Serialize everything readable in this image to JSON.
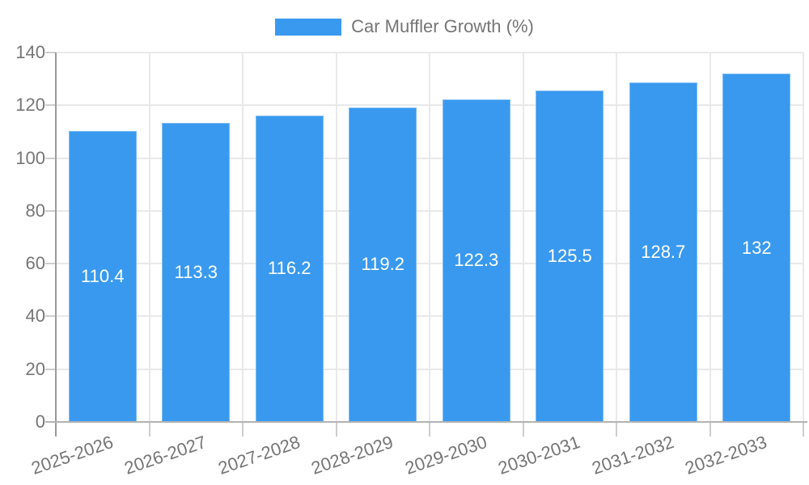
{
  "chart_data": {
    "type": "bar",
    "title": "Car Muffler Growth (%)",
    "legend_label": "Car Muffler Growth (%)",
    "legend_position": "top",
    "categories": [
      "2025-2026",
      "2026-2027",
      "2027-2028",
      "2028-2029",
      "2029-2030",
      "2030-2031",
      "2031-2032",
      "2032-2033"
    ],
    "values": [
      110.4,
      113.3,
      116.2,
      119.2,
      122.3,
      125.5,
      128.7,
      132
    ],
    "value_labels": [
      "110.4",
      "113.3",
      "116.2",
      "119.2",
      "122.3",
      "125.5",
      "128.7",
      "132"
    ],
    "xlabel": "",
    "ylabel": "",
    "ylim": [
      0,
      140
    ],
    "y_ticks": [
      0,
      20,
      40,
      60,
      80,
      100,
      120,
      140
    ],
    "grid": true,
    "colors": {
      "bar": "#3999EE",
      "bar_value_text": "#FFFFFF",
      "axis_text": "#757575",
      "grid_line": "#E9E9E9",
      "tick_line": "#CDCDCD",
      "y_axis_line": "#9A9A9A",
      "baseline": "#B3B3B3"
    }
  }
}
